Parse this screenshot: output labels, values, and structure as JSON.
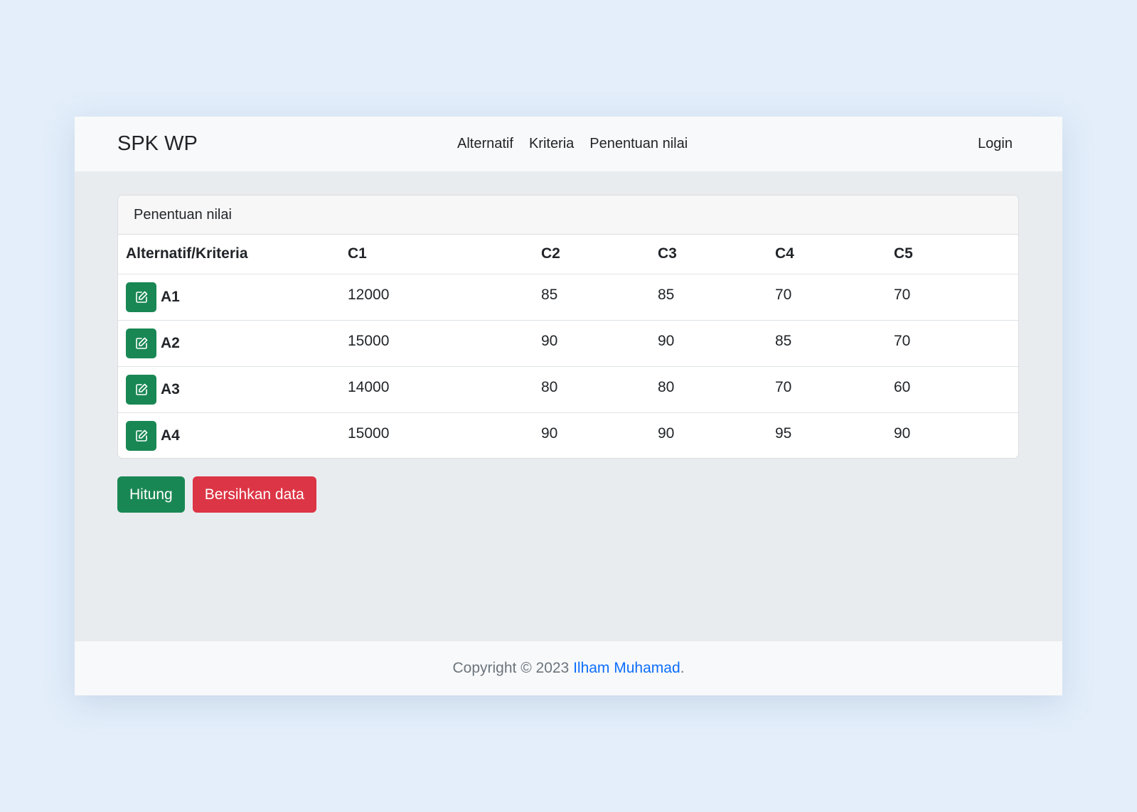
{
  "navbar": {
    "brand": "SPK WP",
    "links": [
      "Alternatif",
      "Kriteria",
      "Penentuan nilai"
    ],
    "login": "Login"
  },
  "card": {
    "title": "Penentuan nilai",
    "headers": [
      "Alternatif/Kriteria",
      "C1",
      "C2",
      "C3",
      "C4",
      "C5"
    ],
    "rows": [
      {
        "name": "A1",
        "values": [
          "12000",
          "85",
          "85",
          "70",
          "70"
        ]
      },
      {
        "name": "A2",
        "values": [
          "15000",
          "90",
          "90",
          "85",
          "70"
        ]
      },
      {
        "name": "A3",
        "values": [
          "14000",
          "80",
          "80",
          "70",
          "60"
        ]
      },
      {
        "name": "A4",
        "values": [
          "15000",
          "90",
          "90",
          "95",
          "90"
        ]
      }
    ],
    "row_action_icon": "edit-icon"
  },
  "actions": {
    "calculate": "Hitung",
    "clear": "Bersihkan data"
  },
  "footer": {
    "prefix": "Copyright © 2023 ",
    "author": "Ilham Muhamad",
    "suffix": "."
  },
  "colors": {
    "page_background": "#e3eefa",
    "success": "#198754",
    "danger": "#dc3545",
    "link": "#0d6efd"
  }
}
